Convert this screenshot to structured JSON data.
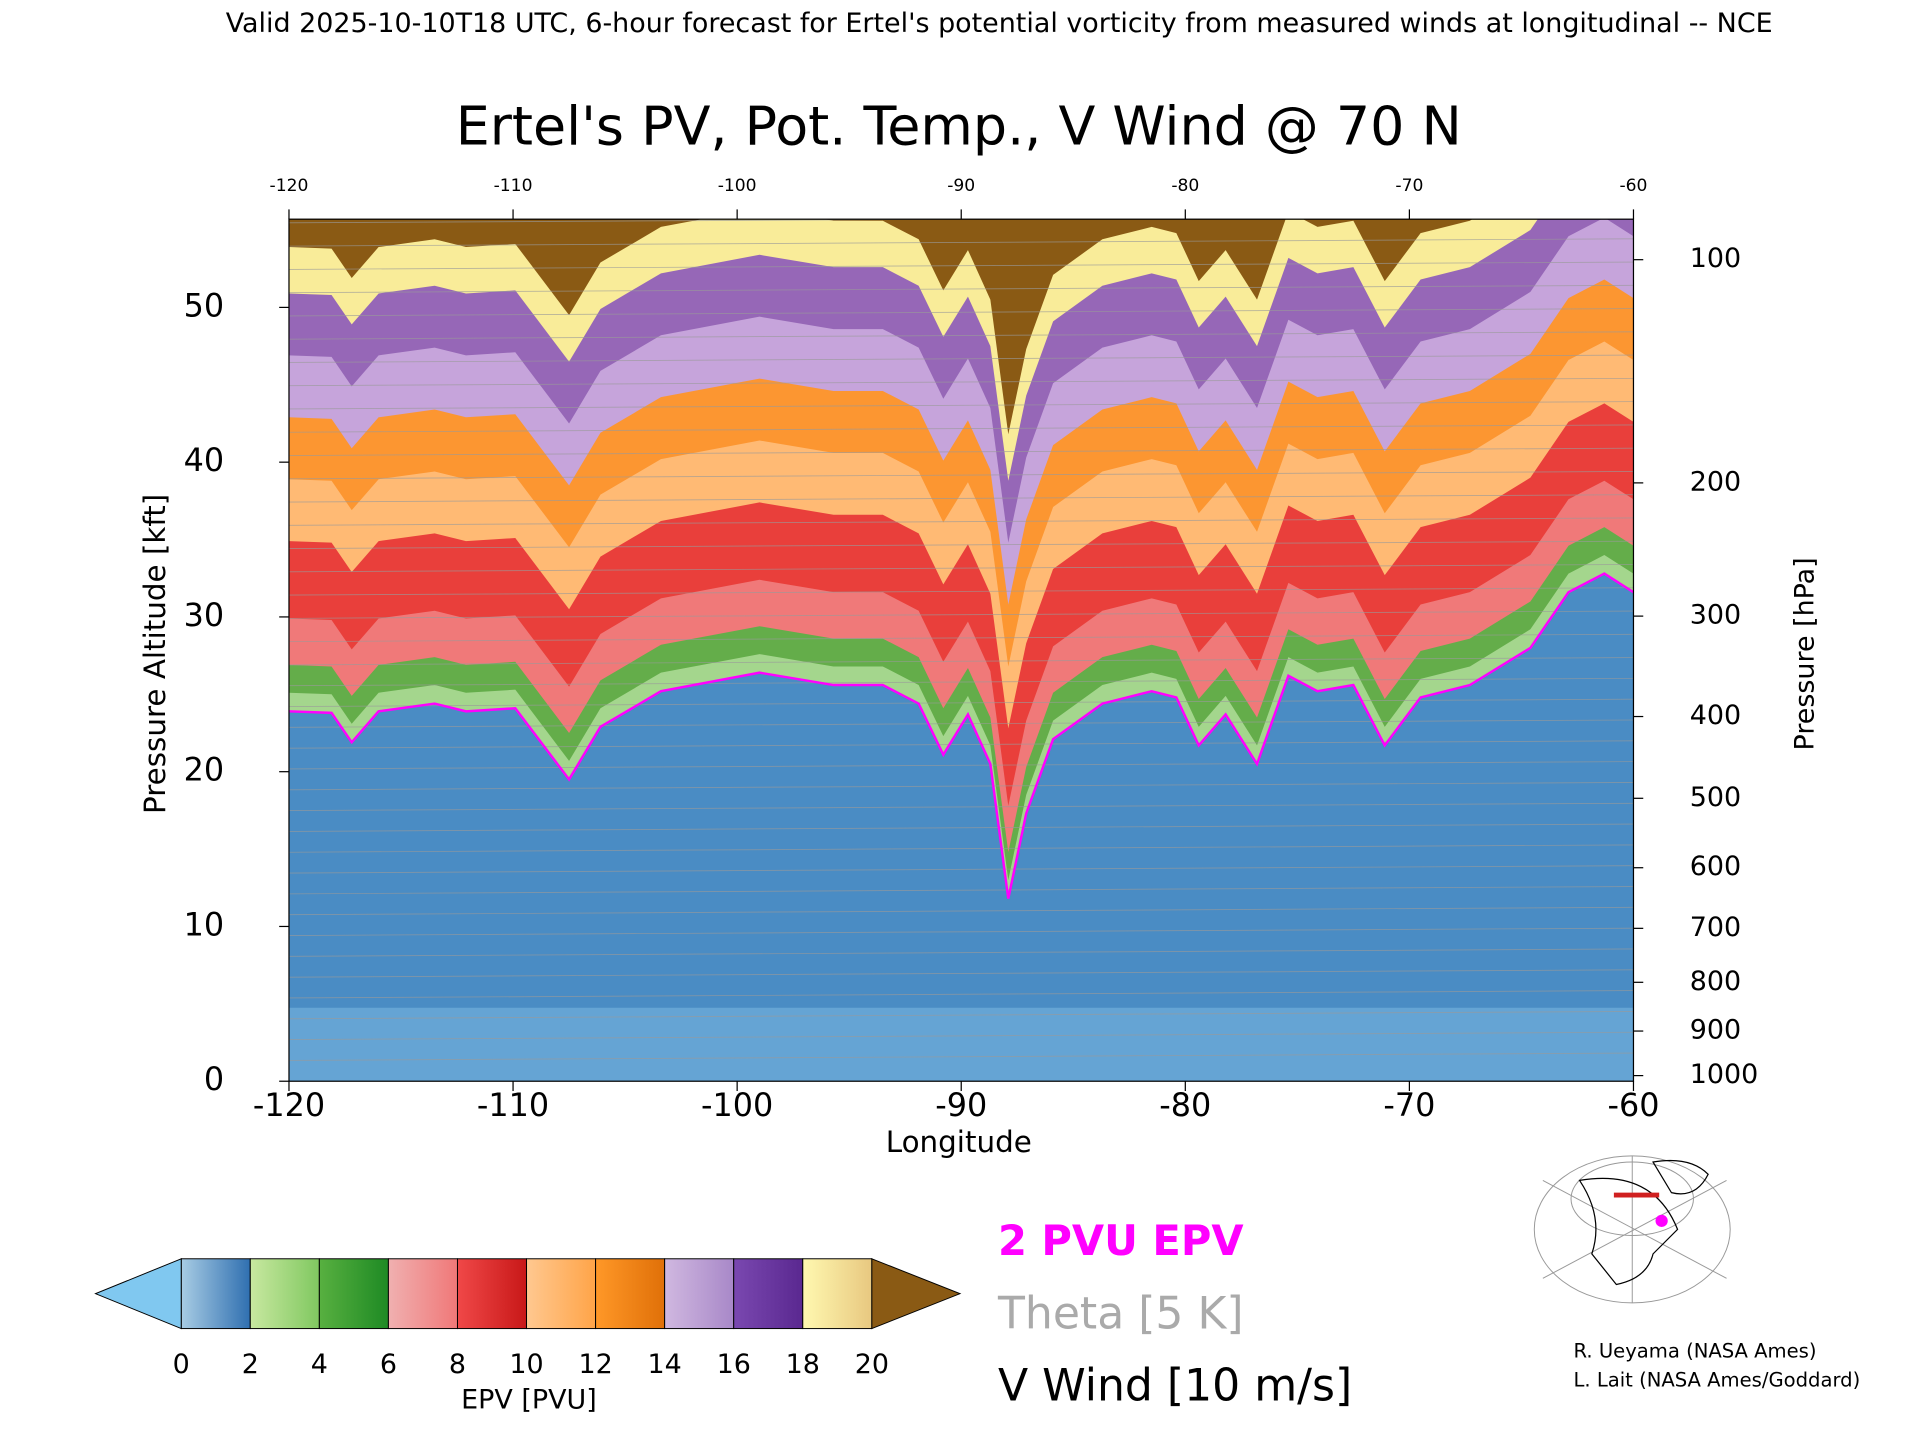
{
  "chart_data": {
    "type": "cross-section",
    "header": "Valid 2025-10-10T18 UTC, 6-hour forecast for Ertel's potential vorticity from measured winds at longitudinal -- NCE",
    "title": "Ertel's PV, Pot. Temp., V Wind @ 70 N",
    "x_label": "Longitude",
    "y_label": "Pressure Altitude [kft]",
    "y2_label": "Pressure [hPa]",
    "xlim": [
      -120,
      -60
    ],
    "xticks": [
      -120,
      -110,
      -100,
      -90,
      -80,
      -70,
      -60
    ],
    "ylim": [
      0,
      55.7
    ],
    "yticks": [
      0,
      10,
      20,
      30,
      40,
      50
    ],
    "y2ticks": [
      100,
      200,
      300,
      400,
      500,
      600,
      700,
      800,
      900,
      1000
    ],
    "series": [
      {
        "name": "2 PVU EPV",
        "color": "#ff00ff",
        "x": [
          -120,
          -118.1,
          -117.2,
          -116,
          -113.5,
          -112.1,
          -109.9,
          -107.5,
          -106.1,
          -103.4,
          -99,
          -95.7,
          -93.5,
          -91.9,
          -90.8,
          -89.7,
          -88.7,
          -87.9,
          -87.1,
          -85.9,
          -83.7,
          -81.5,
          -80.4,
          -79.4,
          -78.2,
          -76.8,
          -75.4,
          -74.1,
          -72.5,
          -71.1,
          -69.5,
          -67.3,
          -64.6,
          -62.9,
          -61.3,
          -60
        ],
        "values": [
          23.9,
          23.8,
          21.9,
          23.9,
          24.4,
          23.9,
          24.1,
          19.5,
          22.9,
          25.2,
          26.4,
          25.6,
          25.6,
          24.4,
          21.1,
          23.7,
          20.5,
          11.8,
          17.3,
          22.1,
          24.4,
          25.2,
          24.8,
          21.7,
          23.7,
          20.5,
          26.2,
          25.2,
          25.6,
          21.7,
          24.8,
          25.6,
          28,
          31.6,
          32.8,
          31.6
        ]
      }
    ],
    "legend": [
      "2 PVU EPV",
      "Theta [5 K]",
      "V Wind [10 m/s]"
    ],
    "colorbar": {
      "label": "EPV [PVU]",
      "ticks": [
        0,
        2,
        4,
        6,
        8,
        10,
        12,
        14,
        16,
        18,
        20
      ],
      "colors": [
        [
          "#a8cce4",
          "#2f6fb0"
        ],
        [
          "#c8e8a0",
          "#80c860"
        ],
        [
          "#58b040",
          "#1e8a24"
        ],
        [
          "#f0b0b0",
          "#f07878"
        ],
        [
          "#f04848",
          "#c81818"
        ],
        [
          "#ffc890",
          "#ffa448"
        ],
        [
          "#ff9828",
          "#e07008"
        ],
        [
          "#d0b8e0",
          "#a888c8"
        ],
        [
          "#7a48b0",
          "#5a2890"
        ],
        [
          "#fff8b0",
          "#e8c880"
        ]
      ],
      "under_color": "#80c8f0",
      "over_color": "#8a5a14"
    },
    "credits": [
      "R. Ueyama (NASA Ames)",
      "L. Lait (NASA Ames/Goddard)"
    ]
  }
}
